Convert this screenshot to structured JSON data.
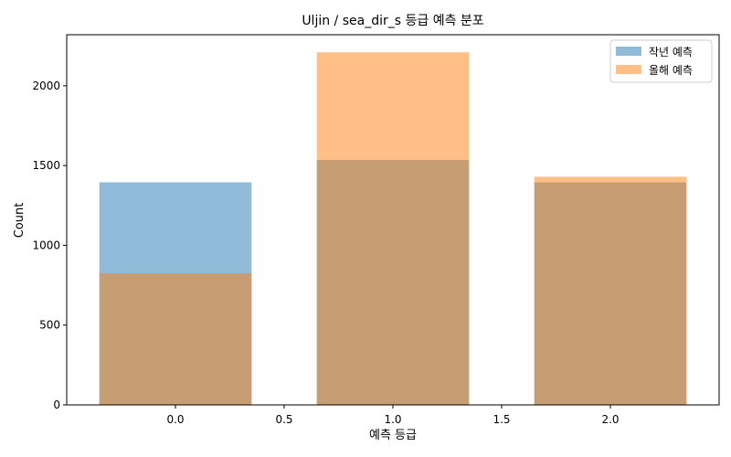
{
  "chart_data": {
    "type": "bar",
    "title": "Uljin / sea_dir_s 등급 예측 분포",
    "xlabel": "예측 등급",
    "ylabel": "Count",
    "x": [
      0.0,
      1.0,
      2.0
    ],
    "bar_width": 0.7,
    "xlim": [
      -0.5,
      2.5
    ],
    "ylim": [
      0,
      2320
    ],
    "xticks": [
      0.0,
      0.5,
      1.0,
      1.5,
      2.0
    ],
    "xtick_labels": [
      "0.0",
      "0.5",
      "1.0",
      "1.5",
      "2.0"
    ],
    "yticks": [
      0,
      500,
      1000,
      1500,
      2000
    ],
    "ytick_labels": [
      "0",
      "500",
      "1000",
      "1500",
      "2000"
    ],
    "legend_position": "top-right",
    "grid": false,
    "series": [
      {
        "name": "작년 예측",
        "values": [
          1395,
          1535,
          1395
        ],
        "color": "#1f77b4",
        "opacity": 0.5
      },
      {
        "name": "올해 예측",
        "values": [
          825,
          2210,
          1430
        ],
        "color": "#ff7f0e",
        "opacity": 0.5
      }
    ]
  }
}
